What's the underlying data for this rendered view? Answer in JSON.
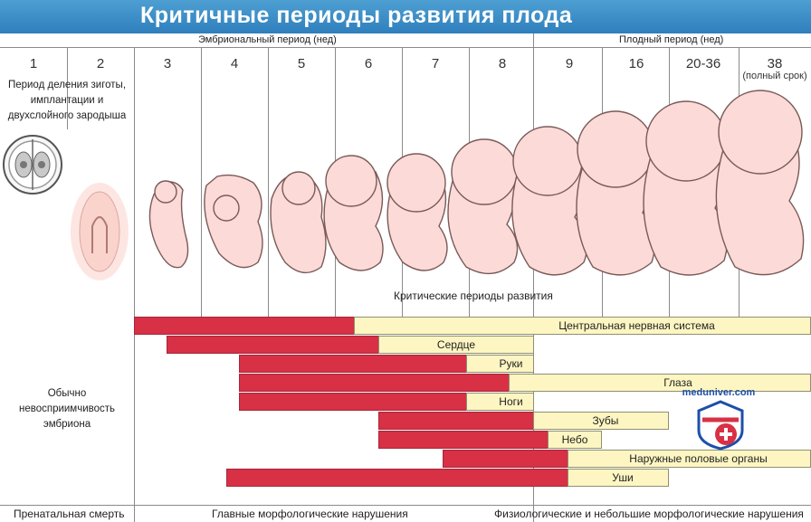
{
  "title": "Критичные периоды развития плода",
  "periods": {
    "embryonic": "Эмбриональный период (нед)",
    "fetal": "Плодный период (нед)"
  },
  "weeks": [
    "1",
    "2",
    "3",
    "4",
    "5",
    "6",
    "7",
    "8",
    "9",
    "16",
    "20-36",
    "38"
  ],
  "full_term": "(полный срок)",
  "notes": {
    "cleavage": "Период деления зиготы, имплантации и двухслойного зародыша",
    "insensitivity": "Обычно невосприимчивость эмбриона"
  },
  "critical_caption": "Критические периоды развития",
  "bars": [
    {
      "label": "Центральная нервная система"
    },
    {
      "label": "Сердце"
    },
    {
      "label": "Руки"
    },
    {
      "label": "Глаза"
    },
    {
      "label": "Ноги"
    },
    {
      "label": "Зубы"
    },
    {
      "label": "Небо"
    },
    {
      "label": "Наружные половые органы"
    },
    {
      "label": "Уши"
    }
  ],
  "footer": {
    "prenatal": "Пренатальная смерть",
    "major": "Главные морфологические нарушения",
    "minor": "Физиологические и небольшие морфологические нарушения"
  },
  "watermark": "meduniver.com",
  "colors": {
    "title_bg": "#3b8cc8",
    "critical": "#d83045",
    "less_sensitive": "#fdf6c2",
    "embryo_skin": "#fbdad8"
  }
}
